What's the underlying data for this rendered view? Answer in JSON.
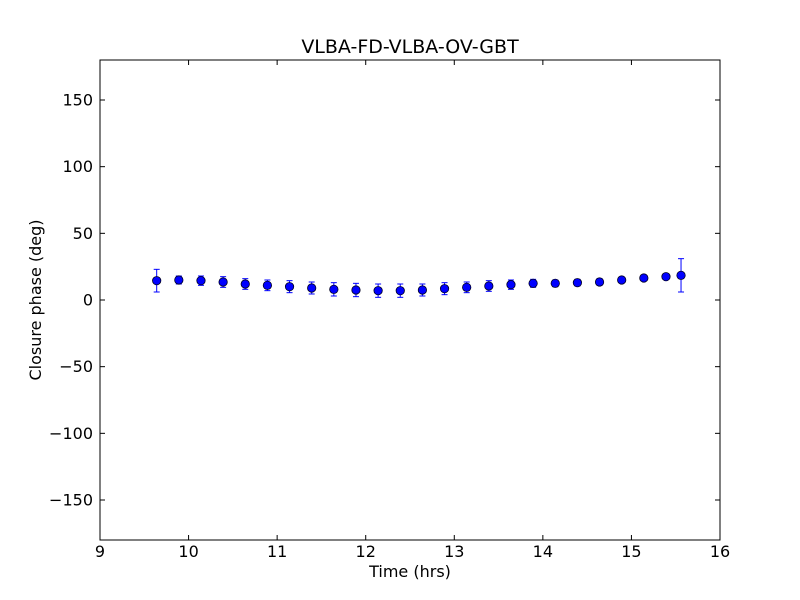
{
  "chart_data": {
    "type": "scatter",
    "title": "VLBA-FD-VLBA-OV-GBT",
    "xlabel": "Time (hrs)",
    "ylabel": "Closure phase (deg)",
    "xlim": [
      9,
      16
    ],
    "ylim": [
      -180,
      180
    ],
    "xticks": [
      9,
      10,
      11,
      12,
      13,
      14,
      15,
      16
    ],
    "yticks": [
      -150,
      -100,
      -50,
      0,
      50,
      100,
      150
    ],
    "xtick_labels": [
      "9",
      "10",
      "11",
      "12",
      "13",
      "14",
      "15",
      "16"
    ],
    "ytick_labels": [
      "−150",
      "−100",
      "−50",
      "0",
      "50",
      "100",
      "150"
    ],
    "grid": false,
    "marker_color": "#0000ff",
    "errorbar_color": "#0000ff",
    "points": [
      {
        "x": 9.64,
        "y": 14.5,
        "err": 8.5
      },
      {
        "x": 9.89,
        "y": 15.0,
        "err": 3.0
      },
      {
        "x": 10.14,
        "y": 14.5,
        "err": 3.5
      },
      {
        "x": 10.39,
        "y": 13.5,
        "err": 4.0
      },
      {
        "x": 10.64,
        "y": 12.0,
        "err": 4.0
      },
      {
        "x": 10.89,
        "y": 11.0,
        "err": 4.0
      },
      {
        "x": 11.14,
        "y": 10.0,
        "err": 4.5
      },
      {
        "x": 11.39,
        "y": 9.0,
        "err": 4.5
      },
      {
        "x": 11.64,
        "y": 8.0,
        "err": 5.0
      },
      {
        "x": 11.89,
        "y": 7.5,
        "err": 5.0
      },
      {
        "x": 12.14,
        "y": 7.0,
        "err": 5.0
      },
      {
        "x": 12.39,
        "y": 7.0,
        "err": 5.0
      },
      {
        "x": 12.64,
        "y": 7.5,
        "err": 4.5
      },
      {
        "x": 12.89,
        "y": 8.5,
        "err": 4.5
      },
      {
        "x": 13.14,
        "y": 9.5,
        "err": 4.0
      },
      {
        "x": 13.39,
        "y": 10.5,
        "err": 4.0
      },
      {
        "x": 13.64,
        "y": 11.5,
        "err": 3.5
      },
      {
        "x": 13.89,
        "y": 12.5,
        "err": 3.0
      },
      {
        "x": 14.14,
        "y": 12.5,
        "err": 2.5
      },
      {
        "x": 14.39,
        "y": 13.0,
        "err": 2.5
      },
      {
        "x": 14.64,
        "y": 13.5,
        "err": 2.5
      },
      {
        "x": 14.89,
        "y": 15.0,
        "err": 2.0
      },
      {
        "x": 15.14,
        "y": 16.5,
        "err": 2.0
      },
      {
        "x": 15.39,
        "y": 17.5,
        "err": 2.0
      },
      {
        "x": 15.56,
        "y": 18.5,
        "err": 12.5
      }
    ]
  }
}
